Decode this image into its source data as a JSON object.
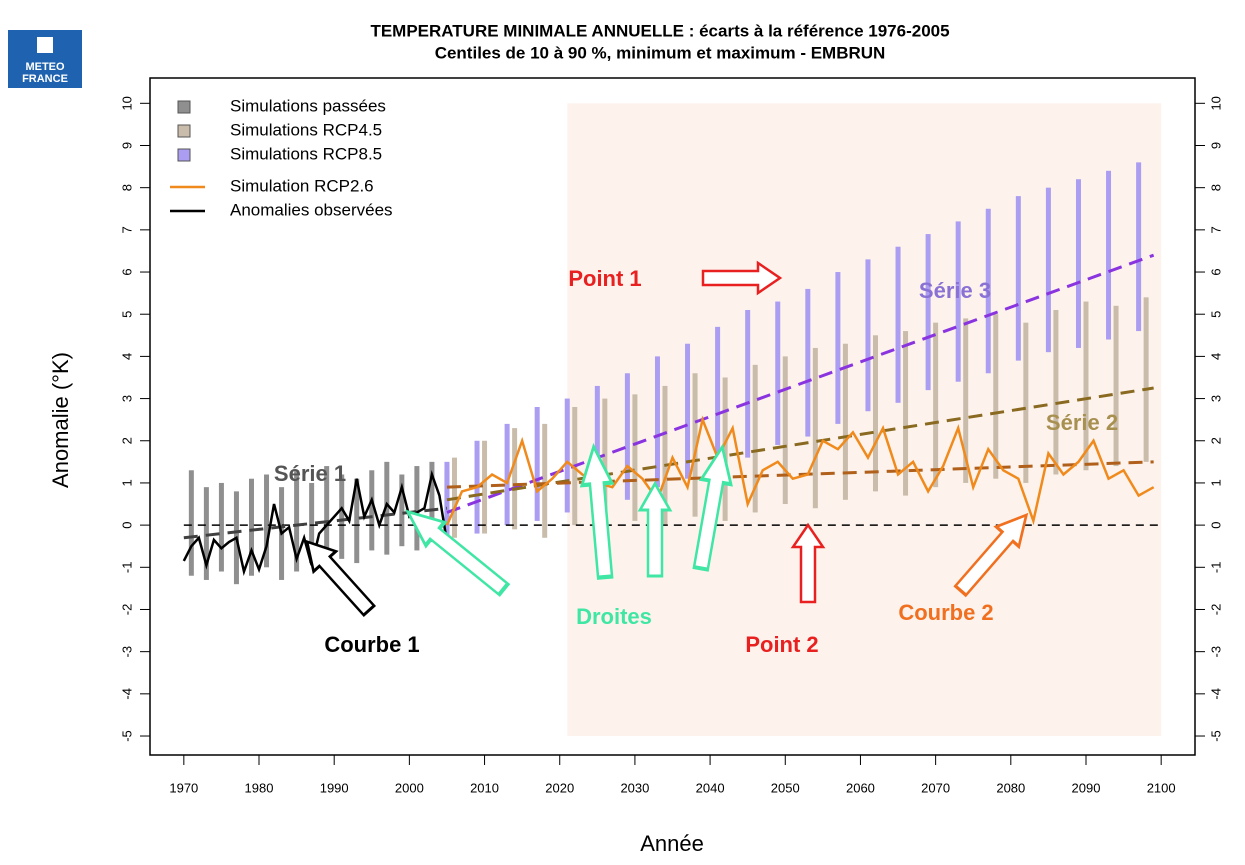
{
  "logo": [
    "METEO",
    "FRANCE"
  ],
  "chart_data": {
    "type": "range-line",
    "title": "TEMPERATURE MINIMALE ANNUELLE : écarts à la référence 1976-2005",
    "subtitle": "Centiles de 10 à 90 %, minimum et maximum   -   EMBRUN",
    "xlabel": "Année",
    "ylabel": "Anomalie (°K)",
    "xlim": [
      1965.5,
      2104.5
    ],
    "ylim": [
      -5.45,
      10.6
    ],
    "xticks": [
      1970,
      1980,
      1990,
      2000,
      2010,
      2020,
      2030,
      2040,
      2050,
      2060,
      2070,
      2080,
      2090,
      2100
    ],
    "yticks": [
      -5,
      -4,
      -3,
      -2,
      -1,
      0,
      1,
      2,
      3,
      4,
      5,
      6,
      7,
      8,
      9,
      10
    ],
    "highlight_region": {
      "x": [
        2021,
        2100
      ],
      "y": [
        -5,
        10
      ],
      "color": "#fdf3ec"
    },
    "reference_line": {
      "value": 0,
      "x": [
        1970,
        2100
      ],
      "color": "#000000"
    },
    "series": [
      {
        "name": "Simulations passées",
        "kind": "range",
        "color": "#8f8f8f",
        "x": [
          1971,
          1973,
          1975,
          1977,
          1979,
          1981,
          1983,
          1985,
          1987,
          1989,
          1991,
          1993,
          1995,
          1997,
          1999,
          2001,
          2003,
          2005
        ],
        "low": [
          -1.2,
          -1.3,
          -1.1,
          -1.4,
          -1.2,
          -1.0,
          -1.3,
          -1.1,
          -0.9,
          -1.0,
          -0.8,
          -0.9,
          -0.6,
          -0.7,
          -0.5,
          -0.6,
          -0.4,
          -0.5
        ],
        "high": [
          1.3,
          0.9,
          1.0,
          0.8,
          1.1,
          1.2,
          0.9,
          1.3,
          1.0,
          1.4,
          1.2,
          1.1,
          1.3,
          1.5,
          1.2,
          1.4,
          1.5,
          1.3
        ]
      },
      {
        "name": "Simulations RCP4.5",
        "kind": "range",
        "color": "#c9bcaa",
        "x": [
          2006,
          2010,
          2014,
          2018,
          2022,
          2026,
          2030,
          2034,
          2038,
          2042,
          2046,
          2050,
          2054,
          2058,
          2062,
          2066,
          2070,
          2074,
          2078,
          2082,
          2086,
          2090,
          2094,
          2098
        ],
        "low": [
          -0.3,
          -0.2,
          -0.1,
          -0.3,
          0.0,
          -0.2,
          0.1,
          0.0,
          0.2,
          0.1,
          0.3,
          0.5,
          0.4,
          0.6,
          0.8,
          0.7,
          0.9,
          1.0,
          1.1,
          1.0,
          1.2,
          1.3,
          1.4,
          1.5
        ],
        "high": [
          1.6,
          2.0,
          2.3,
          2.4,
          2.8,
          3.0,
          3.1,
          3.3,
          3.6,
          3.5,
          3.8,
          4.0,
          4.2,
          4.3,
          4.5,
          4.6,
          4.8,
          4.9,
          5.0,
          4.8,
          5.1,
          5.3,
          5.2,
          5.4
        ]
      },
      {
        "name": "Simulations RCP8.5",
        "kind": "range",
        "color": "#aa9df2",
        "x": [
          2005,
          2009,
          2013,
          2017,
          2021,
          2025,
          2029,
          2033,
          2037,
          2041,
          2045,
          2049,
          2053,
          2057,
          2061,
          2065,
          2069,
          2073,
          2077,
          2081,
          2085,
          2089,
          2093,
          2097
        ],
        "low": [
          -0.3,
          -0.2,
          0.0,
          0.1,
          0.3,
          0.4,
          0.6,
          0.9,
          1.1,
          1.4,
          1.6,
          1.9,
          2.1,
          2.4,
          2.7,
          2.9,
          3.2,
          3.4,
          3.6,
          3.9,
          4.1,
          4.2,
          4.4,
          4.6
        ],
        "high": [
          1.5,
          2.0,
          2.4,
          2.8,
          3.0,
          3.3,
          3.6,
          4.0,
          4.3,
          4.7,
          5.1,
          5.3,
          5.6,
          6.0,
          6.3,
          6.6,
          6.9,
          7.2,
          7.5,
          7.8,
          8.0,
          8.2,
          8.4,
          8.6
        ]
      },
      {
        "name": "Simulation  RCP2.6",
        "kind": "line",
        "color": "#f08a1c",
        "x": [
          2005,
          2007,
          2009,
          2011,
          2013,
          2015,
          2017,
          2019,
          2021,
          2023,
          2025,
          2027,
          2029,
          2031,
          2033,
          2035,
          2037,
          2039,
          2041,
          2043,
          2045,
          2047,
          2049,
          2051,
          2053,
          2055,
          2057,
          2059,
          2061,
          2063,
          2065,
          2067,
          2069,
          2071,
          2073,
          2075,
          2077,
          2079,
          2081,
          2083,
          2085,
          2087,
          2089,
          2091,
          2093,
          2095,
          2097,
          2099
        ],
        "values": [
          0.0,
          0.8,
          0.9,
          1.2,
          1.0,
          2.0,
          0.8,
          1.1,
          1.5,
          1.2,
          1.0,
          0.9,
          1.4,
          1.1,
          0.6,
          1.6,
          0.9,
          2.5,
          1.6,
          2.3,
          0.5,
          1.3,
          1.5,
          1.1,
          1.2,
          2.0,
          1.8,
          2.2,
          1.6,
          2.3,
          1.2,
          1.5,
          0.8,
          1.4,
          2.3,
          0.9,
          1.8,
          1.3,
          1.1,
          0.1,
          1.7,
          1.2,
          1.5,
          2.0,
          1.1,
          1.3,
          0.7,
          0.9
        ]
      },
      {
        "name": "Anomalies observées",
        "kind": "line",
        "color": "#000000",
        "x": [
          1970,
          1971,
          1972,
          1973,
          1974,
          1975,
          1976,
          1977,
          1978,
          1979,
          1980,
          1981,
          1982,
          1983,
          1984,
          1985,
          1986,
          1987,
          1988,
          1989,
          1990,
          1991,
          1992,
          1993,
          1994,
          1995,
          1996,
          1997,
          1998,
          1999,
          2000,
          2001,
          2002,
          2003,
          2004,
          2005
        ],
        "values": [
          -0.85,
          -0.5,
          -0.3,
          -0.95,
          -0.35,
          -0.55,
          -0.4,
          -0.3,
          -1.1,
          -0.6,
          -1.05,
          -0.5,
          0.5,
          -0.2,
          -0.05,
          -0.8,
          -0.3,
          -0.95,
          -0.2,
          0.0,
          0.2,
          0.4,
          0.1,
          1.1,
          0.2,
          0.6,
          0.0,
          0.5,
          0.3,
          0.9,
          0.2,
          0.3,
          0.4,
          1.2,
          0.7,
          -0.4
        ]
      }
    ],
    "trends": [
      {
        "color": "#404040",
        "x": [
          1970,
          2005
        ],
        "values": [
          -0.3,
          0.4
        ]
      },
      {
        "color": "#8a34e0",
        "x": [
          2005,
          2099
        ],
        "values": [
          0.3,
          6.4
        ]
      },
      {
        "color": "#8a6a20",
        "x": [
          2005,
          2099
        ],
        "values": [
          0.6,
          3.25
        ]
      },
      {
        "color": "#b0601a",
        "x": [
          2005,
          2099
        ],
        "values": [
          0.9,
          1.5
        ]
      }
    ],
    "annotations": [
      "Série 1",
      "Série 2",
      "Série 3",
      "Point 1",
      "Point 2",
      "Droites",
      "Courbe 1",
      "Courbe 2"
    ]
  }
}
